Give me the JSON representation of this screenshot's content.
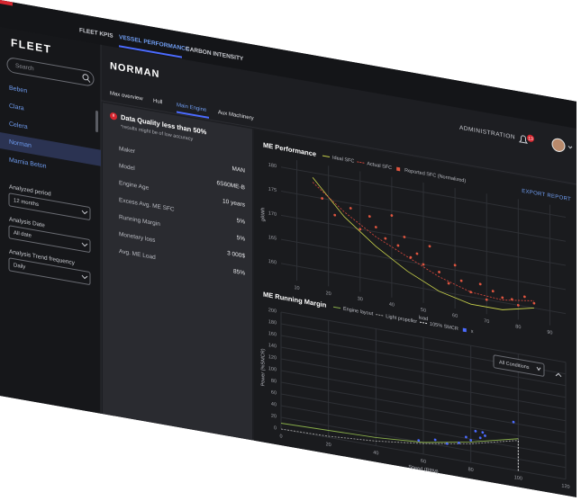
{
  "sidebar": {
    "title": "FLEET",
    "search_placeholder": "Search",
    "vessels": [
      "Beben",
      "Clara",
      "Celera",
      "Norman",
      "Marnia Beton"
    ],
    "selected": 3,
    "filters": [
      {
        "label": "Analyzed period",
        "value": "12 months"
      },
      {
        "label": "Analysis Date",
        "value": "All date"
      },
      {
        "label": "Analysis Trend frequency",
        "value": "Daily"
      }
    ]
  },
  "nav": {
    "tabs": [
      "FLEET KPIS",
      "VESSEL PERFORMANCE",
      "CARBON INTENSITY"
    ],
    "active": 1,
    "admin": "ADMINISTRATION",
    "notifications": "13"
  },
  "vessel": {
    "name": "NORMAN",
    "tabs": [
      "Max overview",
      "Hull",
      "Main Engine",
      "Aux Machinery"
    ],
    "active_tab": 2
  },
  "quality": {
    "title": "Data Quality less than 50%",
    "note": "*results might be of low accuracy"
  },
  "details": [
    {
      "label": "Maker",
      "value": "MAN"
    },
    {
      "label": "Model",
      "value": "6S60ME-B"
    },
    {
      "label": "Engine Age",
      "value": "10 years"
    },
    {
      "label": "Excess Avg. ME SFC",
      "value": "5%"
    },
    {
      "label": "Running Margin",
      "value": "5%"
    },
    {
      "label": "Monetary loss",
      "value": "3 000$"
    },
    {
      "label": "Avg. ME Load",
      "value": "85%"
    }
  ],
  "export": "EXPORT REPORT",
  "performance": {
    "type": "line",
    "title": "ME Performance",
    "x_label": "load",
    "y_label": "g/kWh",
    "xlim": [
      5,
      95
    ],
    "xticks": [
      10,
      20,
      30,
      40,
      50,
      60,
      70,
      80,
      90
    ],
    "ylim": [
      157,
      182
    ],
    "yticks": [
      160,
      165,
      170,
      175,
      180
    ],
    "grid": true,
    "series": [
      {
        "name": "Ideal SFC",
        "color": "#c8d14a",
        "kind": "line",
        "dash": false,
        "x": [
          15,
          25,
          35,
          45,
          55,
          65,
          75,
          85
        ],
        "values": [
          179,
          172,
          167,
          163,
          160,
          158.5,
          158.5,
          160
        ]
      },
      {
        "name": "Actual SFC",
        "color": "#d0463c",
        "kind": "line",
        "dash": true,
        "x": [
          15,
          25,
          35,
          45,
          55,
          65,
          75,
          85
        ],
        "values": [
          178,
          173,
          169,
          166,
          163,
          161,
          160.5,
          161.5
        ]
      },
      {
        "name": "Reported SFC (Normalized)",
        "color": "#e0553f",
        "kind": "scatter",
        "dash": false,
        "x": [
          18,
          22,
          27,
          30,
          33,
          35,
          38,
          40,
          42,
          44,
          46,
          48,
          50,
          52,
          55,
          58,
          60,
          62,
          65,
          68,
          70,
          72,
          75,
          78,
          80,
          82,
          85
        ],
        "values": [
          175,
          172,
          174,
          170,
          173,
          171,
          169,
          174,
          168,
          170,
          166,
          167,
          165,
          169,
          164,
          162,
          166,
          163,
          161,
          163,
          160,
          162,
          161,
          161,
          160,
          162,
          161
        ]
      }
    ]
  },
  "margin": {
    "type": "line",
    "title": "ME Running Margin",
    "x_label": "Speed (RPM)",
    "y_label": "Power (%SMCR)",
    "xlim": [
      0,
      120
    ],
    "xticks": [
      0,
      20,
      40,
      60,
      80,
      100,
      120
    ],
    "ylim": [
      0,
      200
    ],
    "yticks": [
      0,
      20,
      40,
      60,
      80,
      100,
      120,
      140,
      160,
      180,
      200
    ],
    "grid": true,
    "dropdown": "All Conditions",
    "series": [
      {
        "name": "Engine layout",
        "color": "#8ab04a",
        "kind": "line",
        "dash": false,
        "x": [
          0,
          20,
          40,
          60,
          80,
          90,
          100
        ],
        "values": [
          10,
          12,
          14,
          20,
          35,
          45,
          55
        ]
      },
      {
        "name": "Light propeller",
        "color": "#9a9a9a",
        "kind": "line",
        "dash": true,
        "x": [
          0,
          20,
          40,
          60,
          80,
          100
        ],
        "values": [
          0,
          2,
          8,
          18,
          32,
          52
        ]
      },
      {
        "name": "105% SMCR",
        "color": "#e8e8e8",
        "kind": "line",
        "dash": true,
        "x": [
          100,
          100
        ],
        "values": [
          0,
          55
        ]
      },
      {
        "name": "x",
        "color": "#4b6bff",
        "kind": "scatter",
        "dash": false,
        "x": [
          58,
          65,
          70,
          75,
          78,
          80,
          82,
          84,
          85,
          86,
          98
        ],
        "values": [
          22,
          28,
          25,
          30,
          42,
          38,
          55,
          45,
          55,
          50,
          82
        ]
      }
    ]
  }
}
